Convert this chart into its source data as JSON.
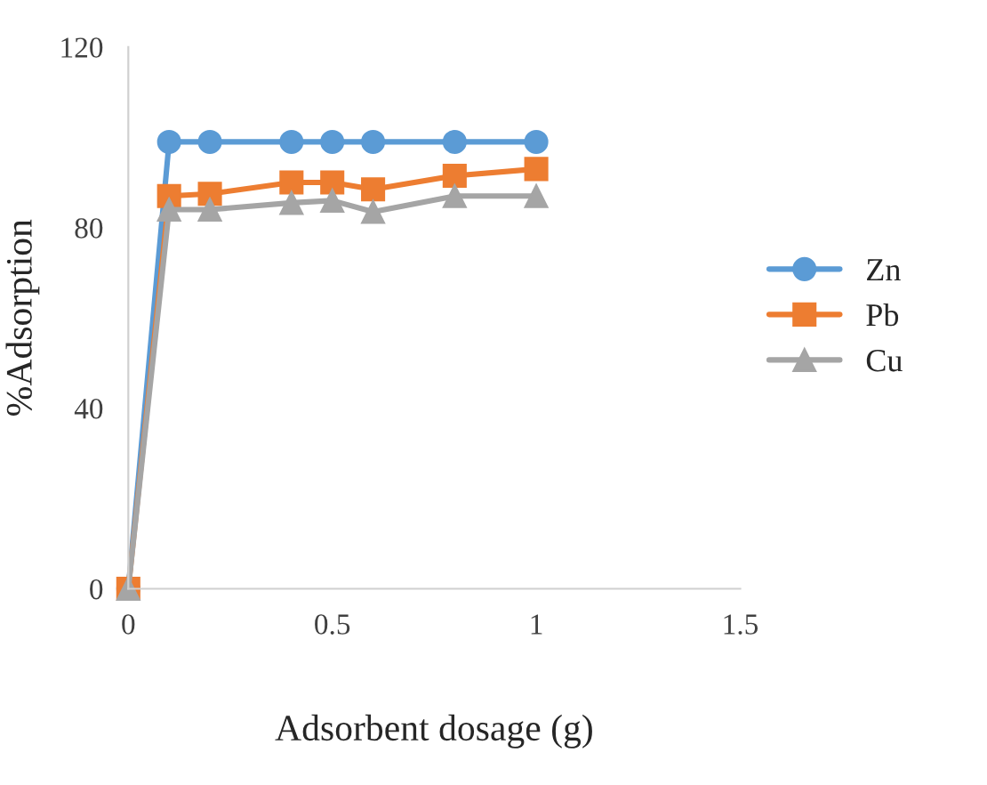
{
  "chart_data": {
    "type": "line",
    "xlabel": "Adsorbent dosage (g)",
    "ylabel": "%Adsorption",
    "x": [
      0,
      0.1,
      0.2,
      0.4,
      0.5,
      0.6,
      0.8,
      1
    ],
    "series": [
      {
        "name": "Zn",
        "color": "#5b9bd5",
        "marker": "circle",
        "values": [
          0,
          99,
          99,
          99,
          99,
          99,
          99,
          99
        ]
      },
      {
        "name": "Pb",
        "color": "#ed7d31",
        "marker": "square",
        "values": [
          0,
          87,
          87.5,
          90,
          90,
          88.5,
          91.5,
          93
        ]
      },
      {
        "name": "Cu",
        "color": "#a5a5a5",
        "marker": "triangle",
        "values": [
          0,
          84,
          84,
          85.5,
          86,
          83.5,
          87,
          87
        ]
      }
    ],
    "xlim": [
      0,
      1.5
    ],
    "xticks": [
      0,
      0.5,
      1,
      1.5
    ],
    "ylim": [
      0,
      120
    ],
    "yticks": [
      0,
      40,
      80,
      120
    ],
    "grid": false,
    "legend": "right"
  }
}
